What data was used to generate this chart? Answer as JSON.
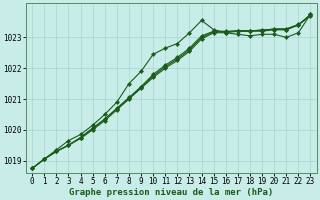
{
  "xlabel": "Graphe pression niveau de la mer (hPa)",
  "ylabel": "",
  "background_color": "#c8ece8",
  "grid_color": "#a8d4d0",
  "line_color": "#1a5c1a",
  "ylim": [
    1018.6,
    1024.1
  ],
  "xlim": [
    -0.5,
    23.5
  ],
  "yticks": [
    1019,
    1020,
    1021,
    1022,
    1023
  ],
  "xticks": [
    0,
    1,
    2,
    3,
    4,
    5,
    6,
    7,
    8,
    9,
    10,
    11,
    12,
    13,
    14,
    15,
    16,
    17,
    18,
    19,
    20,
    21,
    22,
    23
  ],
  "series": {
    "line1": {
      "x": [
        0,
        1,
        2,
        3,
        4,
        5,
        6,
        7,
        8,
        9,
        10,
        11,
        12,
        13,
        14,
        15,
        16,
        17,
        18,
        19,
        20,
        21,
        22,
        23
      ],
      "y": [
        1018.75,
        1019.05,
        1019.35,
        1019.65,
        1019.85,
        1020.15,
        1020.5,
        1020.9,
        1021.5,
        1021.9,
        1022.45,
        1022.65,
        1022.8,
        1023.15,
        1023.55,
        1023.25,
        1023.15,
        1023.1,
        1023.05,
        1023.1,
        1023.1,
        1023.0,
        1023.15,
        1023.75
      ]
    },
    "line2": {
      "x": [
        0,
        1,
        2,
        3,
        4,
        5,
        6,
        7,
        8,
        9,
        10,
        11,
        12,
        13,
        14,
        15,
        16,
        17,
        18,
        19,
        20,
        21,
        22,
        23
      ],
      "y": [
        1018.75,
        1019.05,
        1019.3,
        1019.5,
        1019.75,
        1020.05,
        1020.35,
        1020.7,
        1021.05,
        1021.4,
        1021.8,
        1022.1,
        1022.35,
        1022.65,
        1023.05,
        1023.2,
        1023.2,
        1023.2,
        1023.2,
        1023.25,
        1023.25,
        1023.25,
        1023.4,
        1023.75
      ]
    },
    "line3": {
      "x": [
        0,
        1,
        2,
        3,
        4,
        5,
        6,
        7,
        8,
        9,
        10,
        11,
        12,
        13,
        14,
        15,
        16,
        17,
        18,
        19,
        20,
        21,
        22,
        23
      ],
      "y": [
        1018.75,
        1019.05,
        1019.3,
        1019.5,
        1019.75,
        1020.05,
        1020.35,
        1020.68,
        1021.02,
        1021.38,
        1021.75,
        1022.05,
        1022.3,
        1022.6,
        1023.0,
        1023.18,
        1023.18,
        1023.22,
        1023.22,
        1023.22,
        1023.28,
        1023.28,
        1023.42,
        1023.72
      ]
    },
    "line4": {
      "x": [
        0,
        1,
        2,
        3,
        4,
        5,
        6,
        7,
        8,
        9,
        10,
        11,
        12,
        13,
        14,
        15,
        16,
        17,
        18,
        19,
        20,
        21,
        22,
        23
      ],
      "y": [
        1018.75,
        1019.05,
        1019.3,
        1019.5,
        1019.72,
        1020.0,
        1020.3,
        1020.65,
        1021.0,
        1021.35,
        1021.7,
        1022.0,
        1022.25,
        1022.55,
        1022.95,
        1023.15,
        1023.15,
        1023.2,
        1023.2,
        1023.2,
        1023.25,
        1023.25,
        1023.4,
        1023.7
      ]
    }
  },
  "marker": "D",
  "markersize": 2.0,
  "linewidth": 0.8,
  "xlabel_fontsize": 6.5,
  "tick_fontsize": 5.5,
  "ytick_fontsize": 5.5
}
